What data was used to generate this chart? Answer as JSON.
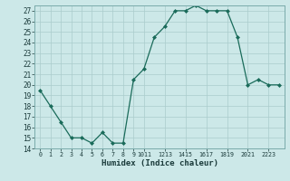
{
  "x": [
    0,
    1,
    2,
    3,
    4,
    5,
    6,
    7,
    8,
    9,
    10,
    11,
    12,
    13,
    14,
    15,
    16,
    17,
    18,
    19,
    20,
    21,
    22,
    23
  ],
  "y": [
    19.5,
    18.0,
    16.5,
    15.0,
    15.0,
    14.5,
    15.5,
    14.5,
    14.5,
    20.5,
    21.5,
    24.5,
    25.5,
    27.0,
    27.0,
    27.5,
    27.0,
    27.0,
    27.0,
    24.5,
    20.0,
    20.5,
    20.0,
    20.0
  ],
  "xlabel": "Humidex (Indice chaleur)",
  "ylim": [
    14,
    27.5
  ],
  "xlim": [
    -0.5,
    23.5
  ],
  "yticks": [
    14,
    15,
    16,
    17,
    18,
    19,
    20,
    21,
    22,
    23,
    24,
    25,
    26,
    27
  ],
  "xtick_positions": [
    0,
    1,
    2,
    3,
    4,
    5,
    6,
    7,
    8,
    9,
    10,
    12,
    14,
    16,
    18,
    20,
    22
  ],
  "xtick_labels": [
    "0",
    "1",
    "2",
    "3",
    "4",
    "5",
    "6",
    "7",
    "8",
    "9",
    "1011",
    "1213",
    "1415",
    "1617",
    "1819",
    "2021",
    "2223"
  ],
  "line_color": "#1a6b5a",
  "marker": "D",
  "marker_size": 2.0,
  "bg_color": "#cce8e8",
  "grid_color": "#aacccc",
  "xlabel_color": "#1a3a3a",
  "tick_color": "#1a3a3a"
}
